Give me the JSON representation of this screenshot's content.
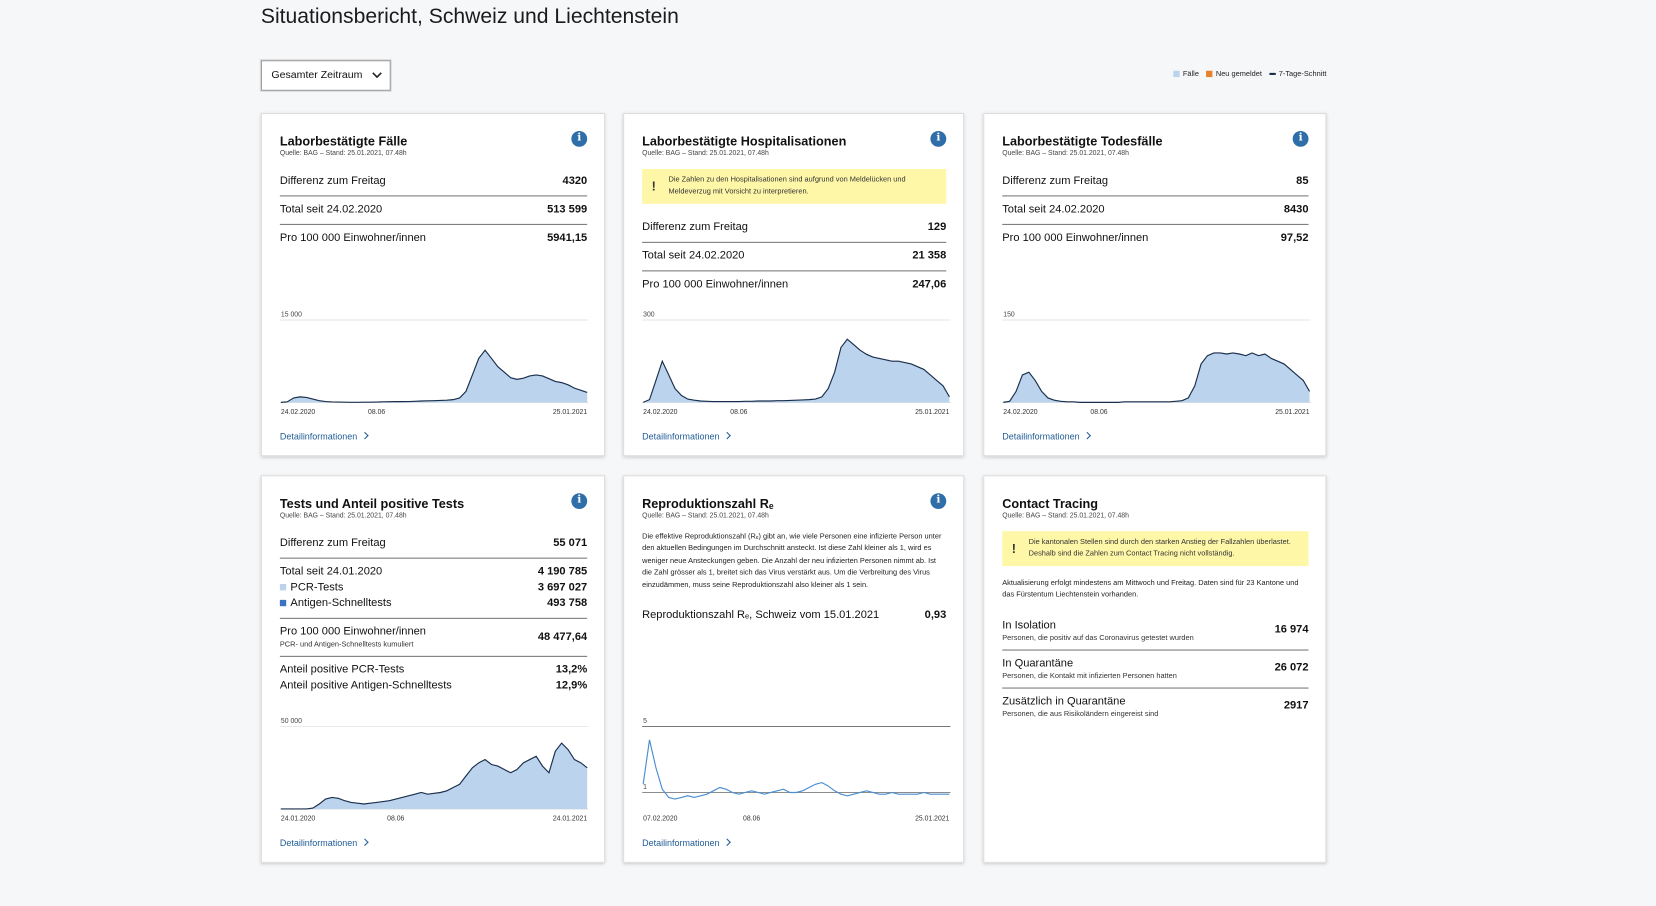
{
  "header": {
    "title": "Situationsbericht, Schweiz und Liechtenstein",
    "dropdown": "Gesamter Zeitraum",
    "legend": [
      {
        "label": "Fälle",
        "color": "#bcd3ee",
        "kind": "box"
      },
      {
        "label": "Neu gemeldet",
        "color": "#e8812c",
        "kind": "box"
      },
      {
        "label": "7-Tage-Schnitt",
        "color": "#1a2f4c",
        "kind": "line"
      }
    ]
  },
  "cards": [
    {
      "title": "Laborbestätigte Fälle",
      "source": "Quelle: BAG – Stand: 25.01.2021, 07.48h",
      "info": true,
      "stats": [
        [
          {
            "label": "Differenz zum Freitag",
            "value": "4320"
          }
        ],
        [
          {
            "label": "Total seit 24.02.2020",
            "value": "513 599"
          }
        ],
        [
          {
            "label": "Pro 100 000 Einwohner/innen",
            "value": "5941,15"
          }
        ]
      ],
      "chart": {
        "type": "area",
        "color": "#bcd3ee",
        "line_color": "#1a2f4c",
        "ylim": [
          0,
          15000
        ],
        "yticks": [
          {
            "value": 15000,
            "label": "15 000"
          }
        ],
        "xticks": [
          {
            "value": 0,
            "label": "24.02.2020"
          },
          {
            "value": 15,
            "label": "08.06"
          },
          {
            "value": 48,
            "label": "25.01.2021"
          }
        ],
        "values": [
          0,
          100,
          800,
          1000,
          900,
          600,
          300,
          150,
          80,
          50,
          30,
          20,
          20,
          30,
          40,
          60,
          100,
          120,
          150,
          130,
          150,
          200,
          250,
          280,
          300,
          350,
          400,
          500,
          800,
          2000,
          5000,
          8000,
          9500,
          8000,
          6500,
          5500,
          4500,
          4200,
          4400,
          4800,
          5000,
          4800,
          4300,
          3800,
          3600,
          3200,
          2600,
          2200,
          1800
        ]
      },
      "link": "Detailinformationen"
    },
    {
      "title": "Laborbestätigte Hospitalisationen",
      "source": "Quelle: BAG – Stand: 25.01.2021, 07.48h",
      "info": true,
      "notice": "Die Zahlen zu den Hospitalisationen sind aufgrund von Meldelücken und Meldeverzug mit Vorsicht zu interpretieren.",
      "stats": [
        [
          {
            "label": "Differenz zum Freitag",
            "value": "129"
          }
        ],
        [
          {
            "label": "Total seit 24.02.2020",
            "value": "21 358"
          }
        ],
        [
          {
            "label": "Pro 100 000 Einwohner/innen",
            "value": "247,06"
          }
        ]
      ],
      "chart": {
        "type": "area",
        "color": "#bcd3ee",
        "line_color": "#1a2f4c",
        "ylim": [
          0,
          300
        ],
        "yticks": [
          300
        ],
        "xticks": [
          {
            "value": 0,
            "label": "24.02.2020"
          },
          {
            "value": 15,
            "label": "08.06"
          },
          {
            "value": 48,
            "label": "25.01.2021"
          }
        ],
        "values": [
          0,
          10,
          80,
          150,
          100,
          50,
          25,
          12,
          8,
          5,
          4,
          3,
          3,
          3,
          3,
          3,
          4,
          4,
          5,
          5,
          5,
          6,
          6,
          7,
          8,
          9,
          10,
          12,
          20,
          50,
          110,
          200,
          230,
          210,
          190,
          175,
          165,
          160,
          155,
          150,
          150,
          145,
          140,
          130,
          120,
          100,
          80,
          60,
          20
        ]
      },
      "link": "Detailinformationen"
    },
    {
      "title": "Laborbestätigte Todesfälle",
      "source": "Quelle: BAG – Stand: 25.01.2021, 07.48h",
      "info": true,
      "stats": [
        [
          {
            "label": "Differenz zum Freitag",
            "value": "85"
          }
        ],
        [
          {
            "label": "Total seit 24.02.2020",
            "value": "8430"
          }
        ],
        [
          {
            "label": "Pro 100 000 Einwohner/innen",
            "value": "97,52"
          }
        ]
      ],
      "chart": {
        "type": "area",
        "color": "#bcd3ee",
        "line_color": "#1a2f4c",
        "ylim": [
          0,
          150
        ],
        "yticks": [
          150
        ],
        "xticks": [
          {
            "value": 0,
            "label": "24.02.2020"
          },
          {
            "value": 15,
            "label": "08.06"
          },
          {
            "value": 48,
            "label": "25.01.2021"
          }
        ],
        "values": [
          0,
          2,
          20,
          50,
          55,
          40,
          20,
          8,
          4,
          2,
          1,
          1,
          0,
          0,
          0,
          0,
          0,
          0,
          0,
          1,
          1,
          1,
          1,
          1,
          1,
          1,
          1,
          2,
          3,
          8,
          30,
          70,
          85,
          90,
          90,
          88,
          90,
          88,
          85,
          90,
          85,
          88,
          80,
          75,
          70,
          60,
          50,
          40,
          20
        ]
      },
      "link": "Detailinformationen"
    },
    {
      "title": "Tests und Anteil positive Tests",
      "source": "Quelle: BAG – Stand: 25.01.2021, 07.48h",
      "info": true,
      "stats": [
        [
          {
            "label": "Differenz zum Freitag",
            "value": "55 071"
          }
        ],
        [
          {
            "label": "Total seit 24.01.2020",
            "value": "4 190 785"
          },
          {
            "label": "PCR-Tests",
            "value": "3 697 027",
            "marker": "#bcd3ee"
          },
          {
            "label": "Antigen-Schnelltests",
            "value": "493 758",
            "marker": "#3a73c0"
          }
        ],
        [
          {
            "label": "Pro 100 000 Einwohner/innen",
            "sublabel": "PCR- und Antigen-Schnelltests kumuliert",
            "value": "48 477,64"
          }
        ],
        [
          {
            "label": "Anteil positive PCR-Tests",
            "value": "13,2%"
          },
          {
            "label": "Anteil positive Antigen-Schnelltests",
            "value": "12,9%"
          }
        ]
      ],
      "chart": {
        "type": "area",
        "color": "#bcd3ee",
        "line_color": "#1a2f4c",
        "ylim": [
          0,
          50000
        ],
        "yticks": [
          {
            "value": 50000,
            "label": "50 000"
          }
        ],
        "xticks": [
          {
            "value": 0,
            "label": "24.01.2020"
          },
          {
            "value": 18,
            "label": "08.06"
          },
          {
            "value": 48,
            "label": "24.01.2021"
          }
        ],
        "values": [
          0,
          0,
          0,
          0,
          0,
          500,
          3000,
          6000,
          7000,
          6500,
          5000,
          4000,
          3500,
          3000,
          3500,
          4000,
          4500,
          5000,
          6000,
          7000,
          8000,
          9000,
          10000,
          9000,
          9500,
          10000,
          11000,
          13000,
          15000,
          20000,
          25000,
          28000,
          30000,
          27000,
          26000,
          24000,
          22000,
          24000,
          28000,
          30000,
          32000,
          26000,
          22000,
          35000,
          40000,
          36000,
          30000,
          28000,
          25000
        ]
      },
      "link": "Detailinformationen"
    },
    {
      "title": "Reproduktionszahl Rₑ",
      "source": "Quelle: BAG – Stand: 25.01.2021, 07.48h",
      "info": true,
      "text": "Die effektive Reproduktionszahl (Rₑ) gibt an, wie viele Personen eine infizierte Person unter den aktuellen Bedingungen im Durchschnitt ansteckt. Ist diese Zahl kleiner als 1, wird es weniger neue Ansteckungen geben. Die Anzahl der neu infizierten Personen nimmt ab. Ist die Zahl grösser als 1, breitet sich das Virus verstärkt aus. Um die Verbreitung des Virus einzudämmen, muss seine Reproduktionszahl also kleiner als 1 sein.",
      "stats": [
        [
          {
            "label": "Reproduktionszahl Rₑ, Schweiz vom 15.01.2021",
            "value": "0,93"
          }
        ]
      ],
      "chart": {
        "type": "line",
        "line_color": "#4b8fd0",
        "ylim": [
          0,
          5
        ],
        "yticks": [
          5,
          1
        ],
        "xticks": [
          {
            "value": 0,
            "label": "07.02.2020"
          },
          {
            "value": 17,
            "label": "08.06"
          },
          {
            "value": 48,
            "label": "25.01.2021"
          }
        ],
        "values": [
          1.5,
          4.2,
          2.5,
          1.2,
          0.7,
          0.6,
          0.7,
          0.8,
          0.7,
          0.8,
          0.9,
          1.1,
          1.3,
          1.2,
          1.0,
          0.9,
          1.0,
          1.1,
          1.0,
          0.9,
          1.0,
          1.1,
          1.2,
          1.0,
          1.0,
          1.1,
          1.3,
          1.5,
          1.6,
          1.4,
          1.1,
          0.9,
          0.8,
          0.9,
          1.0,
          1.1,
          1.0,
          0.9,
          0.9,
          1.0,
          0.9,
          0.9,
          0.9,
          0.9,
          1.0,
          0.9,
          0.9,
          0.9,
          0.9
        ]
      },
      "link": "Detailinformationen"
    },
    {
      "title": "Contact Tracing",
      "source": "Quelle: BAG – Stand: 25.01.2021, 07.48h",
      "info": false,
      "notice": "Die kantonalen Stellen sind durch den starken Anstieg der Fallzahlen überlastet. Deshalb sind die Zahlen zum Contact Tracing nicht vollständig.",
      "text": "Aktualisierung erfolgt mindestens am Mittwoch und Freitag. Daten sind für 23 Kantone und das Fürstentum Liechtenstein vorhanden.",
      "stats": [
        [
          {
            "label": "In Isolation",
            "sublabel": "Personen, die positiv auf das Coronavirus getestet wurden",
            "value": "16 974"
          }
        ],
        [
          {
            "label": "In Quarantäne",
            "sublabel": "Personen, die Kontakt mit infizierten Personen hatten",
            "value": "26 072"
          }
        ],
        [
          {
            "label": "Zusätzlich in Quarantäne",
            "sublabel": "Personen, die aus Risikoländern eingereist sind",
            "value": "2917"
          }
        ]
      ]
    }
  ]
}
